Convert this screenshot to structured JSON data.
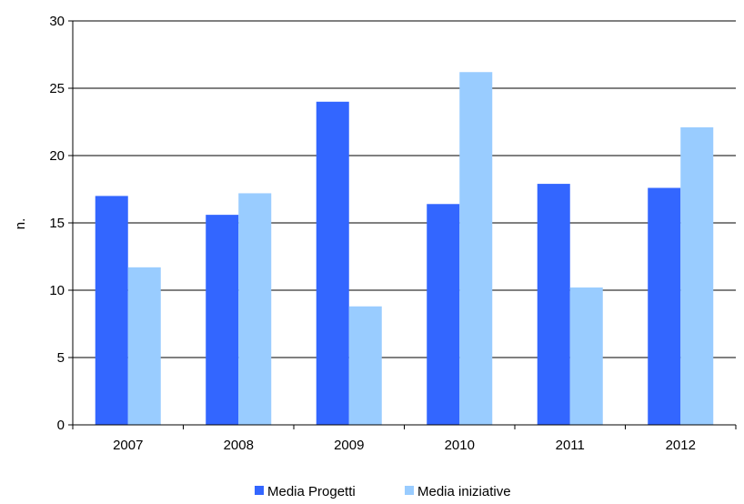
{
  "chart_data": {
    "type": "bar",
    "title": "",
    "xlabel": "",
    "ylabel": "n.",
    "ylim": [
      0,
      30
    ],
    "yticks": [
      0,
      5,
      10,
      15,
      20,
      25,
      30
    ],
    "grid": true,
    "legend_position": "bottom",
    "categories": [
      "2007",
      "2008",
      "2009",
      "2010",
      "2011",
      "2012"
    ],
    "series": [
      {
        "name": "Media Progetti",
        "color": "#3366ff",
        "values": [
          17.0,
          15.6,
          24.0,
          16.4,
          17.9,
          17.6
        ]
      },
      {
        "name": "Media iniziative",
        "color": "#99ccff",
        "values": [
          11.7,
          17.2,
          8.8,
          26.2,
          10.2,
          22.1
        ]
      }
    ]
  }
}
